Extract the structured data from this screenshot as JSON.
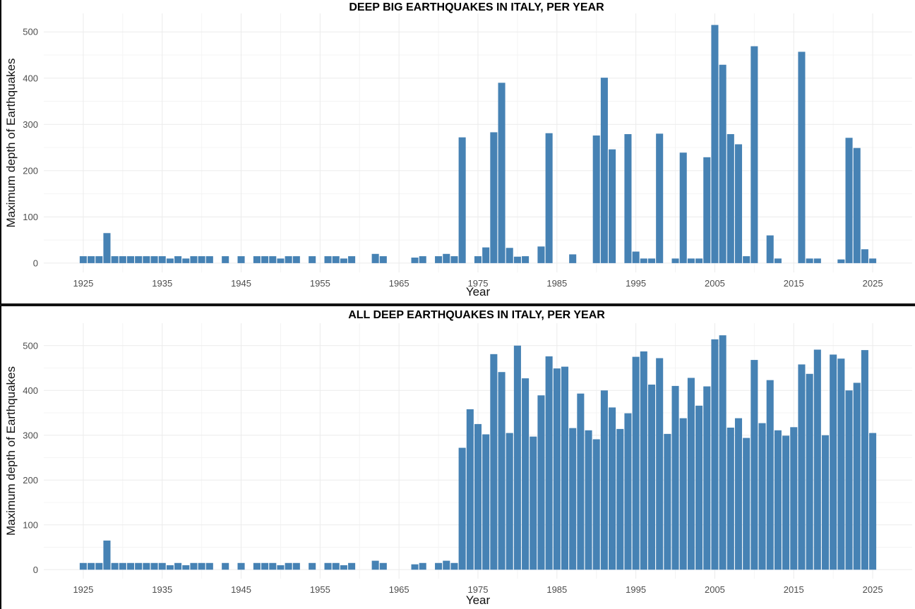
{
  "chart_data": [
    {
      "type": "bar",
      "title": "DEEP BIG EARTHQUAKES IN ITALY, PER YEAR",
      "xlabel": "Year",
      "ylabel": "Maximum depth of Earthquakes",
      "xticks": [
        1925,
        1935,
        1945,
        1955,
        1965,
        1975,
        1985,
        1995,
        2005,
        2015,
        2025
      ],
      "yticks": [
        0,
        100,
        200,
        300,
        400,
        500
      ],
      "xlim": [
        1920,
        2030
      ],
      "ylim": [
        -20,
        540
      ],
      "grid": true,
      "legend": "none",
      "color": "#4682b4",
      "x": [
        1925,
        1926,
        1927,
        1928,
        1929,
        1930,
        1931,
        1932,
        1933,
        1934,
        1935,
        1936,
        1937,
        1938,
        1939,
        1940,
        1941,
        1943,
        1945,
        1947,
        1948,
        1949,
        1950,
        1951,
        1952,
        1954,
        1956,
        1957,
        1958,
        1959,
        1962,
        1963,
        1967,
        1968,
        1970,
        1971,
        1972,
        1973,
        1975,
        1976,
        1977,
        1978,
        1979,
        1980,
        1981,
        1983,
        1984,
        1987,
        1990,
        1991,
        1992,
        1994,
        1995,
        1996,
        1997,
        1998,
        2000,
        2001,
        2002,
        2003,
        2004,
        2005,
        2006,
        2007,
        2008,
        2009,
        2010,
        2012,
        2013,
        2016,
        2017,
        2018,
        2021,
        2022,
        2023,
        2024,
        2025
      ],
      "values": [
        15,
        15,
        15,
        65,
        15,
        15,
        15,
        15,
        15,
        15,
        15,
        10,
        15,
        10,
        15,
        15,
        15,
        15,
        15,
        15,
        15,
        15,
        10,
        15,
        15,
        15,
        15,
        15,
        10,
        15,
        20,
        15,
        12,
        15,
        15,
        20,
        15,
        272,
        15,
        34,
        283,
        390,
        33,
        14,
        15,
        36,
        281,
        19,
        276,
        401,
        246,
        279,
        25,
        10,
        10,
        280,
        10,
        239,
        10,
        10,
        229,
        515,
        429,
        279,
        257,
        15,
        469,
        60,
        10,
        457,
        10,
        10,
        8,
        271,
        249,
        30,
        10
      ]
    },
    {
      "type": "bar",
      "title": "ALL DEEP EARTHQUAKES IN ITALY, PER YEAR",
      "xlabel": "Year",
      "ylabel": "Maximum depth of Earthquakes",
      "xticks": [
        1925,
        1935,
        1945,
        1955,
        1965,
        1975,
        1985,
        1995,
        2005,
        2015,
        2025
      ],
      "yticks": [
        0,
        100,
        200,
        300,
        400,
        500
      ],
      "xlim": [
        1920,
        2030
      ],
      "ylim": [
        -20,
        550
      ],
      "grid": true,
      "legend": "none",
      "color": "#4682b4",
      "x": [
        1925,
        1926,
        1927,
        1928,
        1929,
        1930,
        1931,
        1932,
        1933,
        1934,
        1935,
        1936,
        1937,
        1938,
        1939,
        1940,
        1941,
        1943,
        1945,
        1947,
        1948,
        1949,
        1950,
        1951,
        1952,
        1954,
        1956,
        1957,
        1958,
        1959,
        1962,
        1963,
        1967,
        1968,
        1970,
        1971,
        1972,
        1973,
        1974,
        1975,
        1976,
        1977,
        1978,
        1979,
        1980,
        1981,
        1982,
        1983,
        1984,
        1985,
        1986,
        1987,
        1988,
        1989,
        1990,
        1991,
        1992,
        1993,
        1994,
        1995,
        1996,
        1997,
        1998,
        1999,
        2000,
        2001,
        2002,
        2003,
        2004,
        2005,
        2006,
        2007,
        2008,
        2009,
        2010,
        2011,
        2012,
        2013,
        2014,
        2015,
        2016,
        2017,
        2018,
        2019,
        2020,
        2021,
        2022,
        2023,
        2024,
        2025
      ],
      "values": [
        15,
        15,
        15,
        65,
        15,
        15,
        15,
        15,
        15,
        15,
        15,
        10,
        15,
        10,
        15,
        15,
        15,
        15,
        15,
        15,
        15,
        15,
        10,
        15,
        15,
        15,
        15,
        15,
        10,
        15,
        20,
        15,
        12,
        15,
        15,
        20,
        15,
        272,
        358,
        325,
        302,
        481,
        441,
        305,
        500,
        427,
        297,
        389,
        476,
        449,
        453,
        316,
        393,
        311,
        291,
        400,
        362,
        314,
        349,
        475,
        487,
        413,
        472,
        303,
        410,
        338,
        428,
        366,
        409,
        514,
        523,
        317,
        338,
        294,
        468,
        327,
        423,
        311,
        299,
        318,
        458,
        437,
        491,
        300,
        480,
        471,
        400,
        417,
        490,
        305
      ]
    }
  ]
}
